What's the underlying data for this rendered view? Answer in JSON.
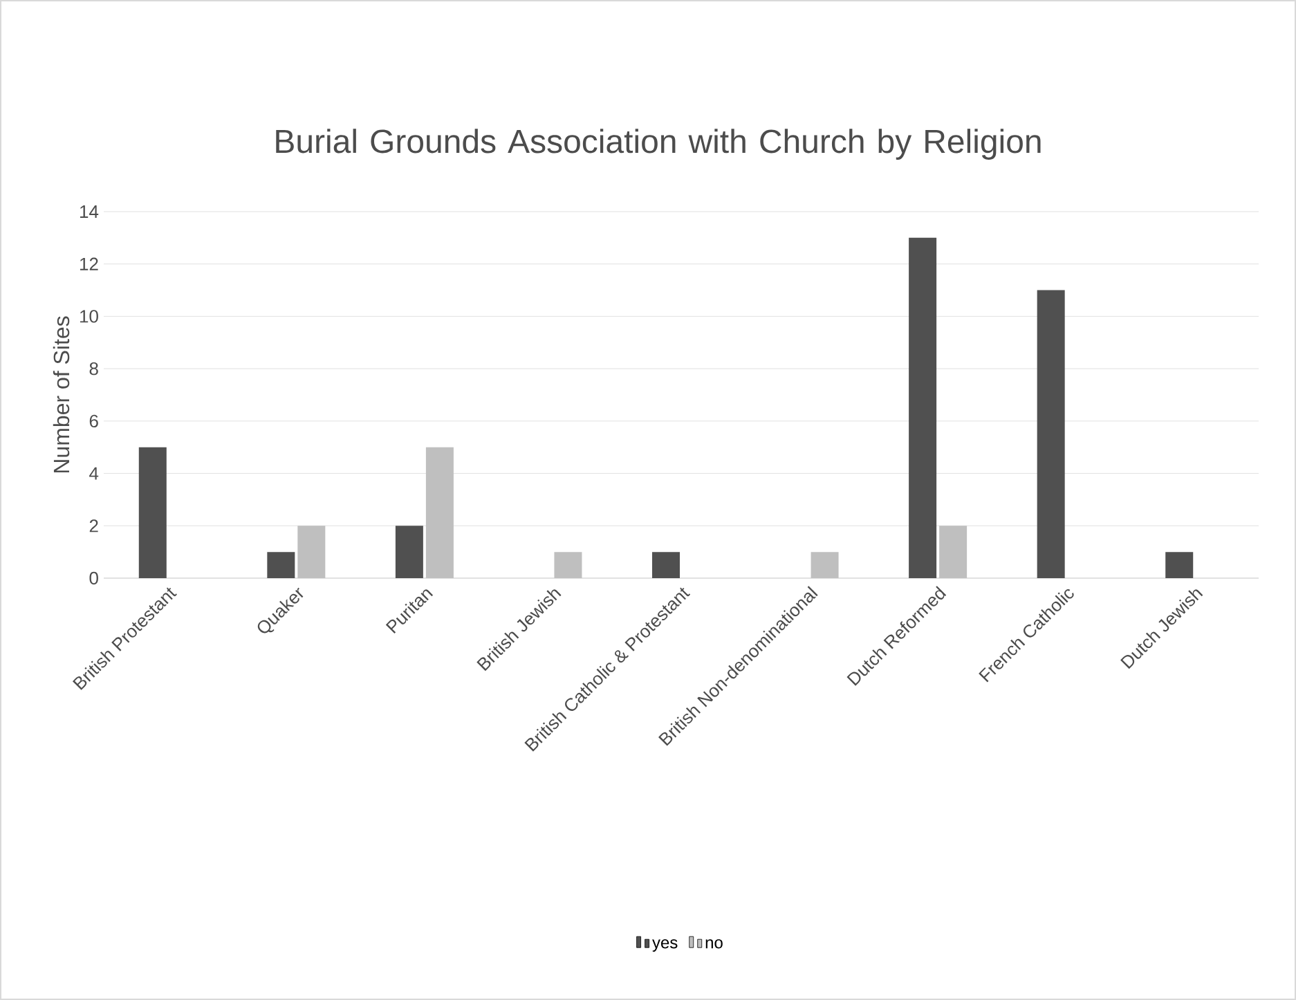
{
  "chart_data": {
    "type": "bar",
    "title": "Burial Grounds Association with Church by Religion",
    "ylabel": "Number of Sites",
    "categories": [
      "British Protestant",
      "Quaker",
      "Puritan",
      "British Jewish",
      "British Catholic & Protestant",
      "British Non-denominational",
      "Dutch Reformed",
      "French Catholic",
      "Dutch Jewish"
    ],
    "series": [
      {
        "name": "yes",
        "color": "#505050",
        "values": [
          5,
          1,
          2,
          null,
          1,
          null,
          13,
          11,
          1
        ]
      },
      {
        "name": "no",
        "color": "#bfbfbf",
        "values": [
          null,
          2,
          5,
          1,
          null,
          1,
          2,
          null,
          null
        ]
      }
    ],
    "ylim": [
      0,
      14
    ],
    "yticks": [
      0,
      2,
      4,
      6,
      8,
      10,
      12,
      14
    ],
    "grid": "y",
    "legend": "bottom"
  }
}
